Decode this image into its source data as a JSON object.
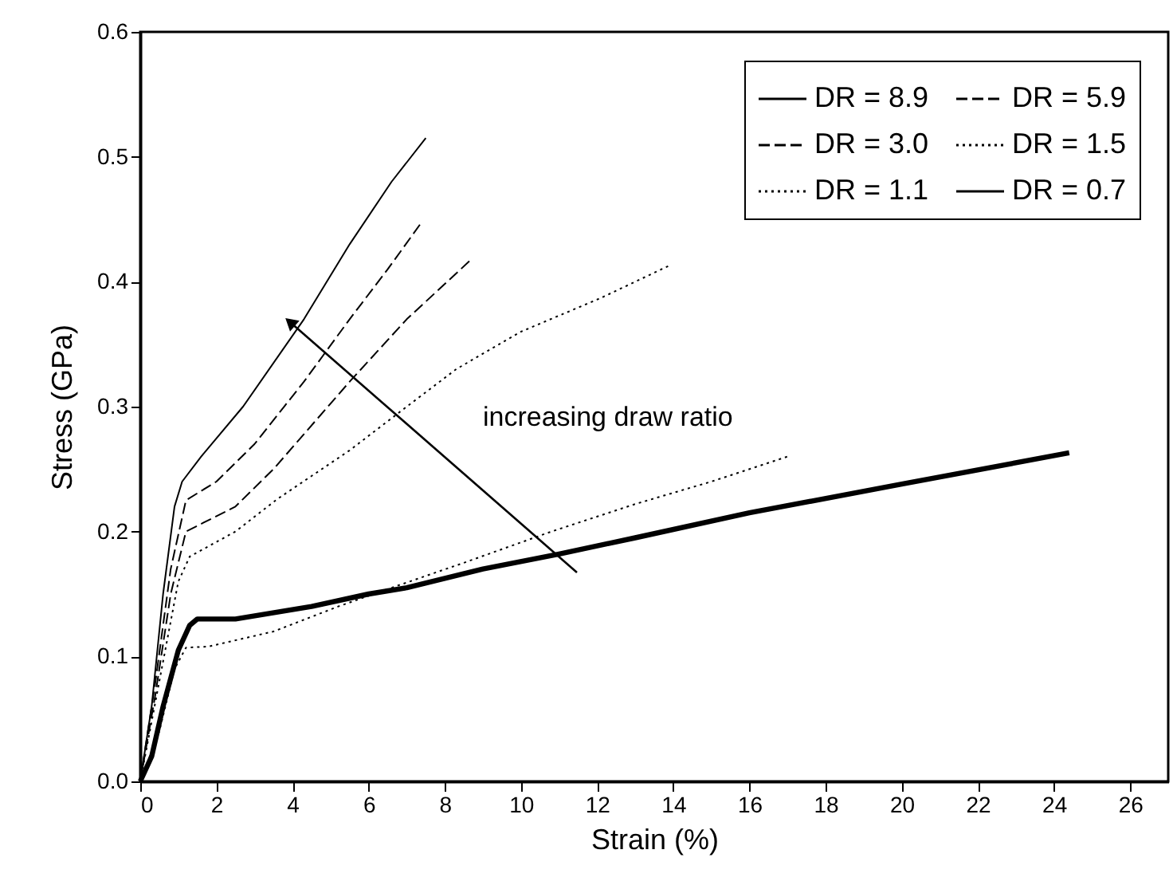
{
  "chart_data": {
    "type": "line",
    "xlabel": "Strain (%)",
    "ylabel": "Stress (GPa)",
    "series": [
      {
        "name": "DR = 8.9",
        "color": "#000000",
        "line_style": "solid",
        "x": [
          0,
          0.3,
          0.6,
          0.9,
          1.1,
          1.6,
          2.7,
          4.3,
          5.5,
          6.6,
          7.5
        ],
        "values": [
          0,
          0.06,
          0.15,
          0.22,
          0.24,
          0.26,
          0.3,
          0.37,
          0.43,
          0.48,
          0.515
        ]
      },
      {
        "name": "DR = 5.9",
        "color": "#000000",
        "line_style": "dashed",
        "x": [
          0,
          0.4,
          0.8,
          1.2,
          2,
          3,
          4.3,
          5.5,
          6.5,
          7.4
        ],
        "values": [
          0,
          0.08,
          0.17,
          0.225,
          0.24,
          0.27,
          0.32,
          0.37,
          0.41,
          0.448
        ]
      },
      {
        "name": "DR = 3.0",
        "color": "#000000",
        "line_style": "dashed",
        "x": [
          0,
          0.4,
          0.8,
          1.2,
          2.5,
          3.5,
          5.5,
          7,
          8.7
        ],
        "values": [
          0,
          0.07,
          0.15,
          0.2,
          0.22,
          0.25,
          0.32,
          0.37,
          0.418
        ]
      },
      {
        "name": "DR = 1.5",
        "color": "#000000",
        "line_style": "dotted",
        "x": [
          0,
          0.5,
          1,
          1.3,
          2.5,
          3.6,
          5.5,
          7,
          8.3,
          10,
          12.1,
          13.9
        ],
        "values": [
          0,
          0.08,
          0.16,
          0.18,
          0.2,
          0.226,
          0.265,
          0.3,
          0.33,
          0.36,
          0.387,
          0.413
        ]
      },
      {
        "name": "DR = 1.1",
        "color": "#000000",
        "line_style": "dotted",
        "x": [
          0,
          0.5,
          0.9,
          1.2,
          1.8,
          3.5,
          5.2,
          6.6,
          8.5,
          10.8,
          13,
          15,
          17
        ],
        "values": [
          0,
          0.04,
          0.09,
          0.107,
          0.108,
          0.12,
          0.14,
          0.155,
          0.175,
          0.2,
          0.222,
          0.24,
          0.26
        ]
      },
      {
        "name": "DR = 0.7",
        "color": "#000000",
        "line_style": "solid",
        "x": [
          0,
          0.3,
          0.6,
          1,
          1.3,
          1.5,
          2.5,
          4.5,
          6,
          7,
          9,
          11,
          13,
          16,
          20,
          24.4
        ],
        "values": [
          0,
          0.02,
          0.06,
          0.105,
          0.125,
          0.13,
          0.13,
          0.14,
          0.15,
          0.155,
          0.17,
          0.182,
          0.195,
          0.215,
          0.238,
          0.263
        ]
      }
    ],
    "xlim": [
      0,
      27
    ],
    "xticks": [
      0,
      2,
      4,
      6,
      8,
      10,
      12,
      14,
      16,
      18,
      20,
      22,
      24,
      26
    ],
    "ylim": [
      0,
      0.6
    ],
    "yticks": [
      {
        "value": 0,
        "label": "0.0"
      },
      0.1,
      0.2,
      0.3,
      0.4,
      0.5,
      0.6
    ],
    "annotations": [
      "increasing draw ratio"
    ],
    "grid": false,
    "legend": "top right"
  }
}
